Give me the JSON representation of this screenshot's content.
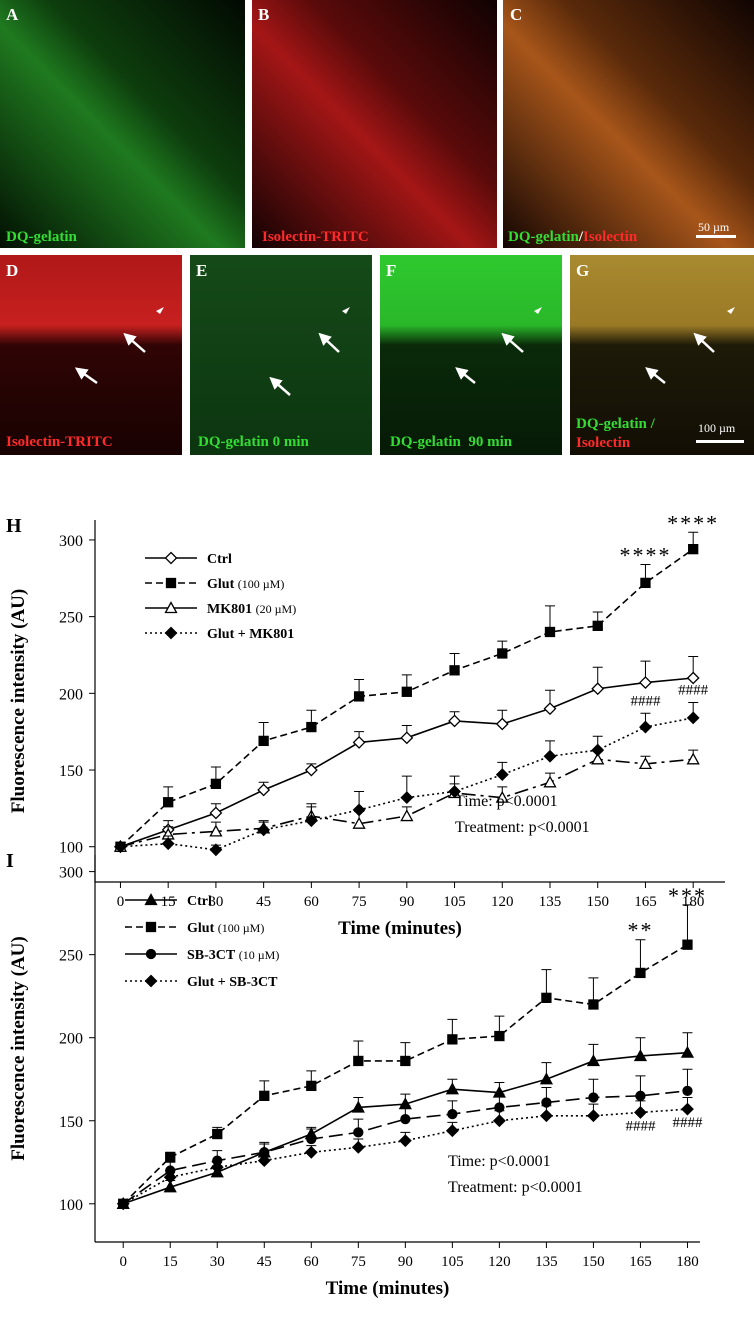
{
  "panels": [
    {
      "letter": "A",
      "caption": "DQ-gelatin"
    },
    {
      "letter": "B",
      "caption": "Isolectin-TRITC"
    },
    {
      "letter": "C",
      "caption": [
        "DQ-gelatin",
        "/",
        "Isolectin"
      ],
      "scale": "50 µm"
    },
    {
      "letter": "D",
      "caption": "Isolectin-TRITC"
    },
    {
      "letter": "E",
      "caption": "DQ-gelatin 0 min"
    },
    {
      "letter": "F",
      "caption": "DQ-gelatin  90 min"
    },
    {
      "letter": "G",
      "caption": [
        "DQ-gelatin /",
        "Isolectin"
      ],
      "scale": "100 µm"
    }
  ],
  "chart_data": [
    {
      "type": "line",
      "panel": "H",
      "ylabel": "Fluorescence  intensity (AU)",
      "xlabel": "Time (minutes)",
      "x": [
        0,
        15,
        30,
        45,
        60,
        75,
        90,
        105,
        120,
        135,
        150,
        165,
        180
      ],
      "xticks": [
        0,
        15,
        30,
        45,
        60,
        75,
        90,
        105,
        120,
        135,
        150,
        165,
        180
      ],
      "xlim": [
        -8,
        190
      ],
      "ylim": [
        77,
        313
      ],
      "yticks": [
        100,
        150,
        200,
        250,
        300
      ],
      "series": [
        {
          "name": "Ctrl",
          "color": "#000",
          "dash": "solid",
          "marker": "diamond-open",
          "values": [
            100,
            111,
            122,
            137,
            150,
            168,
            171,
            182,
            180,
            190,
            203,
            207,
            210
          ],
          "errors": [
            0,
            6,
            6,
            5,
            4,
            7,
            8,
            6,
            9,
            12,
            14,
            14,
            14
          ]
        },
        {
          "name": "Glut",
          "note": "(100 µM)",
          "color": "#000",
          "dash": "dashed",
          "marker": "square",
          "values": [
            100,
            129,
            141,
            169,
            178,
            198,
            201,
            215,
            226,
            240,
            244,
            272,
            294
          ],
          "errors": [
            0,
            10,
            11,
            12,
            11,
            11,
            11,
            11,
            8,
            17,
            9,
            12,
            11
          ]
        },
        {
          "name": "MK801",
          "note": "(20 µM)",
          "color": "#000",
          "dash": "dashdot",
          "legend_dash": "solid",
          "marker": "triangle-open",
          "values": [
            100,
            108,
            110,
            112,
            120,
            115,
            120,
            135,
            132,
            142,
            157,
            154,
            157
          ],
          "errors": [
            0,
            5,
            6,
            5,
            6,
            8,
            6,
            6,
            7,
            6,
            5,
            5,
            6
          ]
        },
        {
          "name": "Glut + MK801",
          "color": "#000",
          "dash": "dotted",
          "marker": "diamond",
          "values": [
            100,
            102,
            98,
            111,
            117,
            124,
            132,
            136,
            147,
            159,
            163,
            178,
            184
          ],
          "errors": [
            0,
            5,
            3,
            5,
            11,
            12,
            14,
            10,
            8,
            10,
            9,
            9,
            10
          ]
        }
      ],
      "annotations": [
        {
          "text": "****",
          "x": 165
        },
        {
          "text": "****",
          "x": 180
        },
        {
          "text": "####",
          "x": 165
        },
        {
          "text": "####",
          "x": 180
        }
      ],
      "stats": [
        "Time: p<0.0001",
        "Treatment: p<0.0001"
      ]
    },
    {
      "type": "line",
      "panel": "I",
      "ylabel": "Fluorescence  intensity (AU)",
      "xlabel": "Time (minutes)",
      "x": [
        0,
        15,
        30,
        45,
        60,
        75,
        90,
        105,
        120,
        135,
        150,
        165,
        180
      ],
      "xticks": [
        0,
        15,
        30,
        45,
        60,
        75,
        90,
        105,
        120,
        135,
        150,
        165,
        180
      ],
      "xlim": [
        -9,
        184
      ],
      "ylim": [
        77,
        310
      ],
      "yticks": [
        100,
        150,
        200,
        250,
        300
      ],
      "series": [
        {
          "name": "Ctrl",
          "color": "#000",
          "dash": "solid",
          "marker": "triangle",
          "values": [
            100,
            110,
            119,
            131,
            142,
            158,
            160,
            169,
            167,
            175,
            186,
            189,
            191
          ],
          "errors": [
            0,
            4,
            4,
            5,
            4,
            6,
            6,
            6,
            6,
            10,
            10,
            11,
            12
          ]
        },
        {
          "name": "Glut",
          "note": "(100 µM)",
          "color": "#000",
          "dash": "dashed",
          "marker": "square",
          "values": [
            100,
            128,
            142,
            165,
            171,
            186,
            186,
            199,
            201,
            224,
            220,
            239,
            256
          ],
          "errors": [
            0,
            3,
            4,
            9,
            9,
            12,
            11,
            12,
            12,
            17,
            16,
            20,
            24
          ]
        },
        {
          "name": "SB-3CT",
          "note": "(10 µM)",
          "color": "#000",
          "dash": "longdash",
          "legend_dash": "solid",
          "marker": "circle",
          "values": [
            100,
            120,
            126,
            131,
            139,
            143,
            151,
            154,
            158,
            161,
            164,
            165,
            168
          ],
          "errors": [
            0,
            5,
            6,
            6,
            6,
            8,
            8,
            8,
            8,
            9,
            11,
            12,
            13
          ]
        },
        {
          "name": "Glut + SB-3CT",
          "color": "#000",
          "dash": "dotted",
          "marker": "diamond",
          "values": [
            100,
            116,
            122,
            126,
            131,
            134,
            138,
            144,
            150,
            153,
            153,
            155,
            157
          ],
          "errors": [
            0,
            4,
            4,
            4,
            4,
            5,
            5,
            5,
            6,
            6,
            7,
            7,
            7
          ]
        }
      ],
      "annotations": [
        {
          "text": "**",
          "x": 165
        },
        {
          "text": "***",
          "x": 180
        },
        {
          "text": "####",
          "x": 165
        },
        {
          "text": "####",
          "x": 180
        }
      ],
      "stats": [
        "Time: p<0.0001",
        "Treatment: p<0.0001"
      ]
    }
  ]
}
